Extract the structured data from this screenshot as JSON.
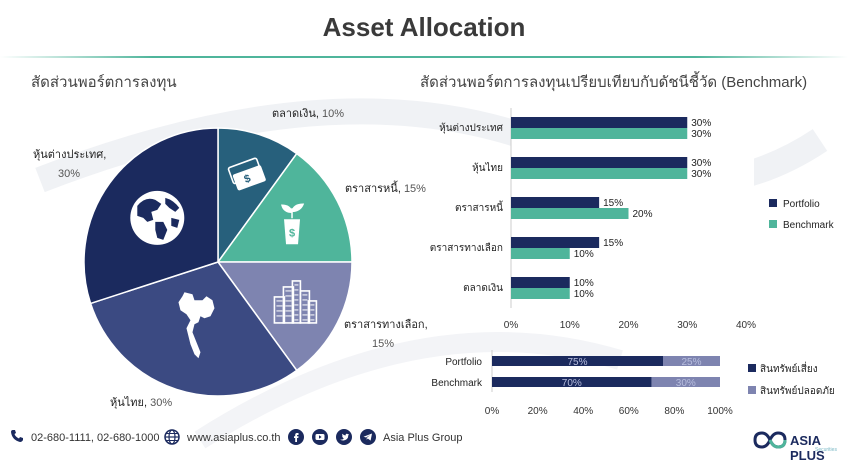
{
  "title": "Asset Allocation",
  "left_subtitle": "สัดส่วนพอร์ตการลงทุน",
  "right_subtitle": "สัดส่วนพอร์ตการลงทุนเปรียบเทียบกับดัชนีชี้วัด (Benchmark)",
  "colors": {
    "navy": "#1b2a5e",
    "teal": "#4fb59b",
    "slate": "#27607c",
    "indigo": "#3b4a82",
    "lavender": "#7e84b0"
  },
  "chart_data": [
    {
      "type": "pie",
      "slices": [
        {
          "label": "ตลาดเงิน",
          "value": 10,
          "pct_text": "10%",
          "color": "#27607c",
          "icon": "money-icon"
        },
        {
          "label": "ตราสารหนี้",
          "value": 15,
          "pct_text": "15%",
          "color": "#4fb59b",
          "icon": "plant-money-icon"
        },
        {
          "label": "ตราสารทางเลือก",
          "value": 15,
          "pct_text": "15%",
          "color": "#7e84b0",
          "icon": "buildings-icon"
        },
        {
          "label": "หุ้นไทย",
          "value": 30,
          "pct_text": "30%",
          "color": "#3b4a82",
          "icon": "thailand-map-icon"
        },
        {
          "label": "หุ้นต่างประเทศ",
          "value": 30,
          "pct_text": "30%",
          "color": "#1b2a5e",
          "icon": "globe-icon"
        }
      ]
    },
    {
      "type": "bar",
      "orientation": "horizontal",
      "categories": [
        "หุ้นต่างประเทศ",
        "หุ้นไทย",
        "ตราสารหนี้",
        "ตราสารทางเลือก",
        "ตลาดเงิน"
      ],
      "series": [
        {
          "name": "Portfolio",
          "values": [
            30,
            30,
            15,
            15,
            10
          ],
          "color": "#1b2a5e"
        },
        {
          "name": "Benchmark",
          "values": [
            30,
            30,
            20,
            10,
            10
          ],
          "color": "#4fb59b"
        }
      ],
      "xlim": [
        0,
        40
      ],
      "xticks": [
        "0%",
        "10%",
        "20%",
        "30%",
        "40%"
      ],
      "legend": "right"
    },
    {
      "type": "bar",
      "orientation": "horizontal",
      "stacked": true,
      "categories": [
        "Portfolio",
        "Benchmark"
      ],
      "series": [
        {
          "name": "สินทรัพย์เสี่ยง",
          "values": [
            75,
            70
          ],
          "color": "#1b2a5e"
        },
        {
          "name": "สินทรัพย์ปลอดภัย",
          "values": [
            25,
            30
          ],
          "color": "#7e84b0"
        }
      ],
      "xlim": [
        0,
        100
      ],
      "xticks": [
        "0%",
        "20%",
        "40%",
        "60%",
        "80%",
        "100%"
      ],
      "legend": "right"
    }
  ],
  "footer": {
    "phone": "02-680-1111, 02-680-1000",
    "website": "www.asiaplus.co.th",
    "social": "Asia Plus Group",
    "logo_text": "ASIA PLUS",
    "logo_sub": "Securities"
  }
}
